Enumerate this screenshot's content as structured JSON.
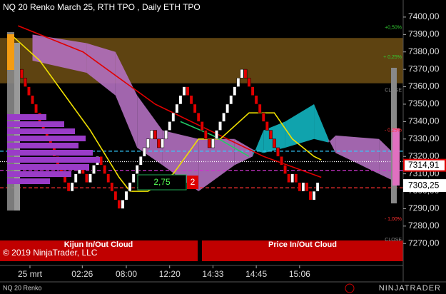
{
  "chart_data": {
    "type": "renko",
    "title": "NQ 20 Renko March 25, RTH TPO , Daily ETH TPO",
    "instrument": "NQ 20 Renko",
    "copyright": "© 2019 NinjaTrader, LLC",
    "brand": "NINJATRADER",
    "open": 7385,
    "values": [
      7380,
      7375,
      7370,
      7365,
      7360,
      7355,
      7350,
      7345,
      7340,
      7335,
      7330,
      7325,
      7320,
      7315,
      7310,
      7305,
      7300,
      7305,
      7310,
      7315,
      7310,
      7305,
      7310,
      7315,
      7320,
      7315,
      7310,
      7305,
      7300,
      7295,
      7290,
      7295,
      7300,
      7305,
      7310,
      7315,
      7320,
      7325,
      7330,
      7335,
      7330,
      7325,
      7330,
      7335,
      7340,
      7345,
      7350,
      7355,
      7360,
      7355,
      7350,
      7345,
      7340,
      7335,
      7330,
      7325,
      7330,
      7335,
      7340,
      7345,
      7350,
      7355,
      7360,
      7365,
      7370,
      7365,
      7360,
      7355,
      7350,
      7345,
      7340,
      7335,
      7330,
      7325,
      7320,
      7315,
      7310,
      7305,
      7310,
      7305,
      7300,
      7305,
      7300,
      7295,
      7300,
      7305
    ],
    "up_color": "#ffffff",
    "down_color": "#e00000",
    "xlim": [
      -3,
      108.7
    ],
    "ylim": [
      7257.4,
      7409.8
    ],
    "yticks": [
      {
        "value": 7270,
        "label": "7270,00"
      },
      {
        "value": 7280,
        "label": "7280,00"
      },
      {
        "value": 7290,
        "label": "7290,00"
      },
      {
        "value": 7300,
        "label": "7300,00"
      },
      {
        "value": 7310,
        "label": "7310,00"
      },
      {
        "value": 7320,
        "label": "7320,00"
      },
      {
        "value": 7330,
        "label": "7330,00"
      },
      {
        "value": 7340,
        "label": "7340,00"
      },
      {
        "value": 7350,
        "label": "7350,00"
      },
      {
        "value": 7360,
        "label": "7360,00"
      },
      {
        "value": 7370,
        "label": "7370,00"
      },
      {
        "value": 7380,
        "label": "7380,00"
      },
      {
        "value": 7390,
        "label": "7390,00"
      },
      {
        "value": 7400,
        "label": "7400,00"
      }
    ],
    "xticks": [
      {
        "value": 5.3,
        "label": "25 mrt"
      },
      {
        "value": 19.8,
        "label": "02:26"
      },
      {
        "value": 32,
        "label": "08:00"
      },
      {
        "value": 44,
        "label": "12:20"
      },
      {
        "value": 56,
        "label": "14:33"
      },
      {
        "value": 68,
        "label": "14:45"
      },
      {
        "value": 80,
        "label": "15:06"
      }
    ],
    "band": {
      "range": [
        7362,
        7388
      ],
      "color": "#6e4f14"
    },
    "cloud": {
      "x": [
        6,
        21,
        29,
        35,
        42,
        52,
        62,
        67,
        70,
        76,
        84,
        88,
        90,
        102,
        107
      ],
      "a": [
        7375,
        7368,
        7355,
        7325,
        7315,
        7300,
        7315,
        7320,
        7335,
        7340,
        7350,
        7330,
        7322,
        7310,
        7305
      ],
      "b": [
        7390,
        7385,
        7380,
        7355,
        7335,
        7330,
        7330,
        7324,
        7322,
        7325,
        7330,
        7328,
        7332,
        7330,
        7320
      ],
      "up_color": "#12b5c0",
      "down_color": "#b370c0"
    },
    "lines": [
      {
        "color": "#e00000",
        "x": [
          2,
          20,
          40,
          55,
          70,
          86
        ],
        "values": [
          7395,
          7380,
          7350,
          7335,
          7320,
          7308
        ]
      },
      {
        "color": "#f0e000",
        "x": [
          0,
          8,
          15,
          22,
          30,
          33,
          38,
          45,
          52,
          58,
          66,
          73,
          78,
          84,
          86
        ],
        "values": [
          7390,
          7375,
          7355,
          7335,
          7308,
          7300,
          7300,
          7310,
          7330,
          7330,
          7345,
          7345,
          7330,
          7320,
          7318
        ]
      },
      {
        "color": "#22cc66",
        "x": [
          47,
          56,
          66
        ],
        "values": [
          7340,
          7332,
          7320
        ]
      }
    ],
    "levels": [
      {
        "value": 7323,
        "color": "#33ccff",
        "style": "dashed"
      },
      {
        "value": 7317,
        "color": "#ffffff",
        "style": "dotted"
      },
      {
        "value": 7312,
        "color": "#cc33cc",
        "style": "dashed"
      },
      {
        "value": 7302,
        "color": "#ff3030",
        "style": "dashed"
      }
    ],
    "price_labels": [
      {
        "value": 7314.91,
        "label": "7314,91",
        "color": "#e00000"
      },
      {
        "value": 7303.25,
        "label": "7303,25",
        "color": "#ffffff"
      }
    ],
    "axis_notes": [
      {
        "value": 7394,
        "label": "+0,50%",
        "color": "#33cc33"
      },
      {
        "value": 7377,
        "label": "+ 0,25%",
        "color": "#33cc33"
      },
      {
        "value": 7358,
        "label": "CLOSE",
        "color": "#888888"
      },
      {
        "value": 7335,
        "label": "- 0,25%",
        "color": "#ff3030"
      },
      {
        "value": 7284,
        "label": "- 1,00%",
        "color": "#ff3030"
      },
      {
        "value": 7272,
        "label": "CLOSE",
        "color": "#888888"
      }
    ],
    "signal_box": {
      "value": "2,75",
      "count": "2"
    },
    "panels": [
      "Kijun In/Out Cloud",
      "Price In/Out Cloud"
    ]
  }
}
